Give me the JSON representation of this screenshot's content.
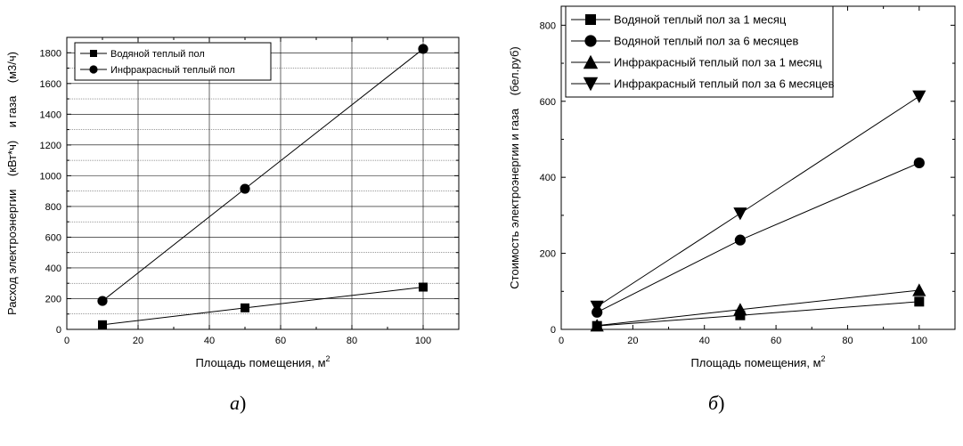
{
  "panel_labels": {
    "a": {
      "letter": "а",
      "paren": ")"
    },
    "b": {
      "letter": "б",
      "paren": ")"
    }
  },
  "chart_data": [
    {
      "type": "line",
      "xlabel": "Площадь помещения, м",
      "xlabel_sup": "2",
      "ylabel_parts": [
        "Расход электроэнергии",
        "(кВт*ч)",
        "и газа",
        "(м3/ч)"
      ],
      "xlim": [
        0,
        110
      ],
      "ylim": [
        0,
        1900
      ],
      "xticks": [
        0,
        20,
        40,
        60,
        80,
        100
      ],
      "yticks": [
        0,
        200,
        400,
        600,
        800,
        1000,
        1200,
        1400,
        1600,
        1800
      ],
      "grid": true,
      "legend_position": "top-left",
      "series": [
        {
          "name": "Водяной теплый пол",
          "marker": "square",
          "x": [
            10,
            50,
            100
          ],
          "values": [
            30,
            140,
            275
          ]
        },
        {
          "name": "Инфракрасный теплый пол",
          "marker": "circle",
          "x": [
            10,
            50,
            100
          ],
          "values": [
            185,
            915,
            1825
          ]
        }
      ]
    },
    {
      "type": "line",
      "xlabel": "Площадь помещения, м",
      "xlabel_sup": "2",
      "ylabel_parts": [
        "Стоимость электроэнергии и газа",
        "(бел.руб)"
      ],
      "xlim": [
        0,
        110
      ],
      "ylim": [
        0,
        850
      ],
      "xticks": [
        0,
        20,
        40,
        60,
        80,
        100
      ],
      "yticks": [
        0,
        200,
        400,
        600,
        800
      ],
      "grid": false,
      "legend_position": "top-left",
      "series": [
        {
          "name": "Водяной теплый пол за 1 месяц",
          "marker": "square",
          "x": [
            10,
            50,
            100
          ],
          "values": [
            9,
            37,
            73
          ]
        },
        {
          "name": "Водяной теплый пол за 6 месяцев",
          "marker": "circle",
          "x": [
            10,
            50,
            100
          ],
          "values": [
            45,
            235,
            438
          ]
        },
        {
          "name": "Инфракрасный теплый пол за 1 месяц",
          "marker": "triangle-up",
          "x": [
            10,
            50,
            100
          ],
          "values": [
            10,
            52,
            103
          ]
        },
        {
          "name": "Инфракрасный теплый пол за 6 месяцев",
          "marker": "triangle-down",
          "x": [
            10,
            50,
            100
          ],
          "values": [
            60,
            305,
            613
          ]
        }
      ]
    }
  ]
}
